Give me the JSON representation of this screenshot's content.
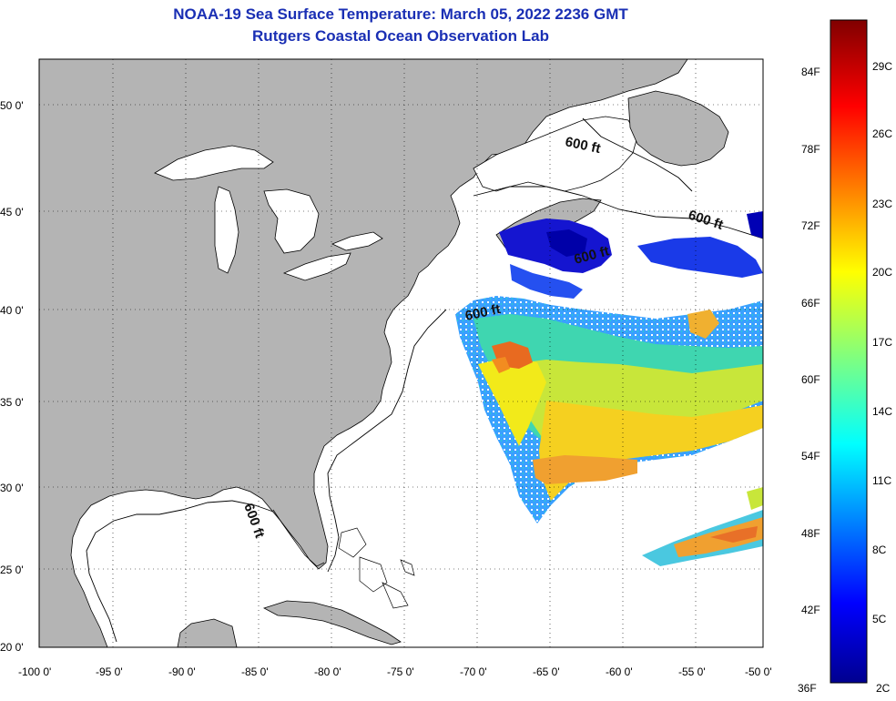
{
  "title": "NOAA-19 Sea Surface Temperature:  March 05, 2022 2236 GMT",
  "subtitle": "Rutgers Coastal Ocean Observation Lab",
  "lat_labels": [
    "50 0'",
    "45 0'",
    "40 0'",
    "35 0'",
    "30 0'",
    "25 0'",
    "20 0'"
  ],
  "lon_labels": [
    "-100 0'",
    "-95 0'",
    "-90 0'",
    "-85 0'",
    "-80 0'",
    "-75 0'",
    "-70 0'",
    "-65 0'",
    "-60 0'",
    "-55 0'",
    "-50 0'"
  ],
  "colorbar": {
    "fahrenheit": [
      "84F",
      "78F",
      "72F",
      "66F",
      "60F",
      "54F",
      "48F",
      "42F",
      "36F"
    ],
    "celsius": [
      "29C",
      "26C",
      "23C",
      "20C",
      "17C",
      "14C",
      "11C",
      "8C",
      "5C",
      "2C"
    ]
  },
  "isobath_labels": [
    "600 ft",
    "600 ft",
    "600 ft",
    "600 ft",
    "600 ft"
  ],
  "colors": {
    "land": "#b4b4b4",
    "ocean": "#ffffff",
    "title": "#1a2fb4"
  }
}
